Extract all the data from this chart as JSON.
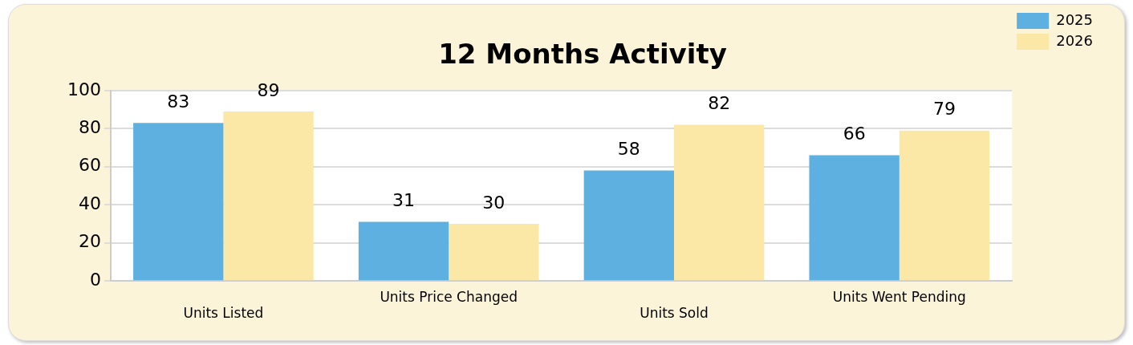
{
  "chart_data": {
    "type": "bar",
    "title": "12 Months Activity",
    "categories": [
      "Units Listed",
      "Units Price Changed",
      "Units Sold",
      "Units Went Pending"
    ],
    "series": [
      {
        "name": "2025",
        "color": "#5eb0e0",
        "values": [
          83,
          31,
          58,
          66
        ]
      },
      {
        "name": "2026",
        "color": "#fbe8a6",
        "values": [
          89,
          30,
          82,
          79
        ]
      }
    ],
    "ylim": [
      0,
      100
    ],
    "yticks": [
      0,
      20,
      40,
      60,
      80,
      100
    ],
    "grid": "y",
    "legend": "top right",
    "data_labels": true
  }
}
